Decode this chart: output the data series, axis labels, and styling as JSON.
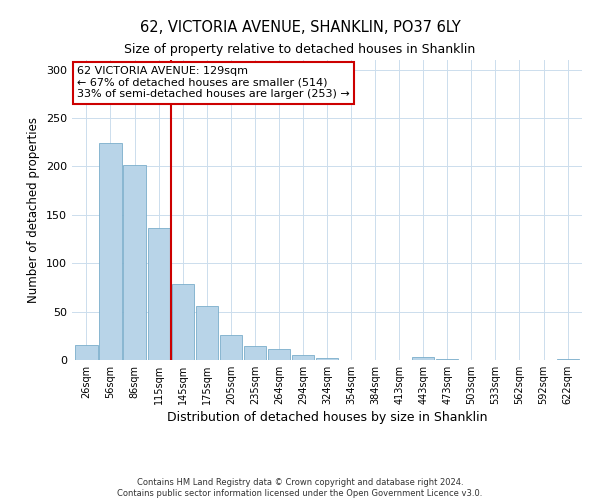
{
  "title": "62, VICTORIA AVENUE, SHANKLIN, PO37 6LY",
  "subtitle": "Size of property relative to detached houses in Shanklin",
  "xlabel": "Distribution of detached houses by size in Shanklin",
  "ylabel": "Number of detached properties",
  "bar_labels": [
    "26sqm",
    "56sqm",
    "86sqm",
    "115sqm",
    "145sqm",
    "175sqm",
    "205sqm",
    "235sqm",
    "264sqm",
    "294sqm",
    "324sqm",
    "354sqm",
    "384sqm",
    "413sqm",
    "443sqm",
    "473sqm",
    "503sqm",
    "533sqm",
    "562sqm",
    "592sqm",
    "622sqm"
  ],
  "bar_values": [
    16,
    224,
    202,
    136,
    79,
    56,
    26,
    14,
    11,
    5,
    2,
    0,
    0,
    0,
    3,
    1,
    0,
    0,
    0,
    0,
    1
  ],
  "bar_color": "#b8d4e8",
  "bar_edge_color": "#7baecb",
  "vline_color": "#cc0000",
  "annotation_line1": "62 VICTORIA AVENUE: 129sqm",
  "annotation_line2": "← 67% of detached houses are smaller (514)",
  "annotation_line3": "33% of semi-detached houses are larger (253) →",
  "annotation_box_color": "#ffffff",
  "annotation_box_edge": "#cc0000",
  "ylim": [
    0,
    310
  ],
  "yticks": [
    0,
    50,
    100,
    150,
    200,
    250,
    300
  ],
  "footer_text": "Contains HM Land Registry data © Crown copyright and database right 2024.\nContains public sector information licensed under the Open Government Licence v3.0.",
  "background_color": "#ffffff",
  "grid_color": "#ccdded"
}
